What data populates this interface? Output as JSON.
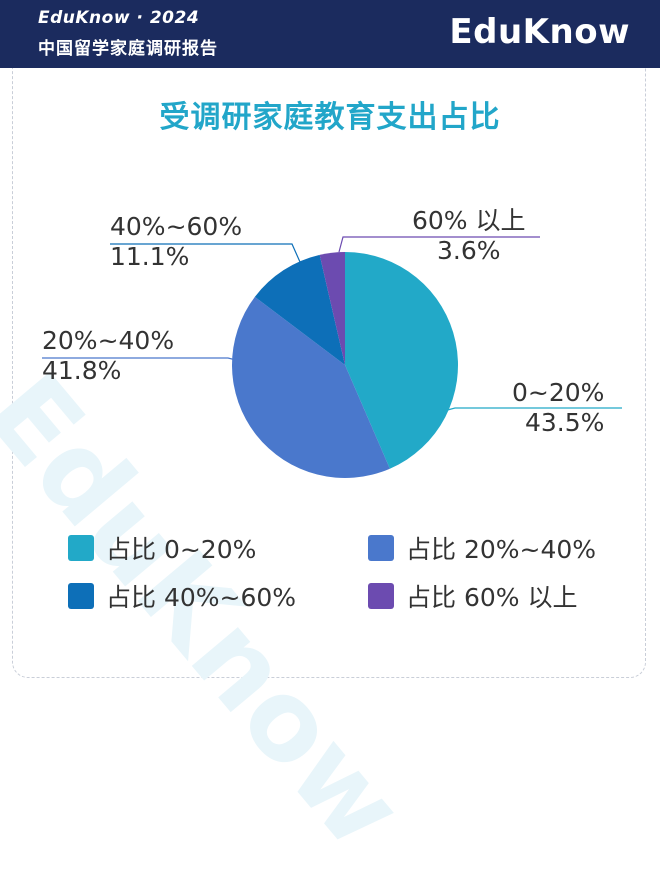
{
  "header": {
    "brand_year": "EduKnow · 2024",
    "subtitle": "中国留学家庭调研报告",
    "logo": "EduKnow"
  },
  "watermark": "EduKnow",
  "chart_data": {
    "type": "pie",
    "title": "受调研家庭教育支出占比",
    "slices": [
      {
        "category": "0~20%",
        "value": 43.5,
        "value_label": "43.5%",
        "legend": "占比 0~20%",
        "color": "#22a9c8"
      },
      {
        "category": "20%~40%",
        "value": 41.8,
        "value_label": "41.8%",
        "legend": "占比 20%~40%",
        "color": "#4a78cc"
      },
      {
        "category": "40%~60%",
        "value": 11.1,
        "value_label": "11.1%",
        "legend": "占比 40%~60%",
        "color": "#0d6fb8"
      },
      {
        "category": "60% 以上",
        "value": 3.6,
        "value_label": "3.6%",
        "legend": "占比 60% 以上",
        "color": "#6c4bb0"
      }
    ],
    "start_angle": "12 o'clock",
    "direction": "clockwise",
    "legend_placement": "bottom"
  }
}
